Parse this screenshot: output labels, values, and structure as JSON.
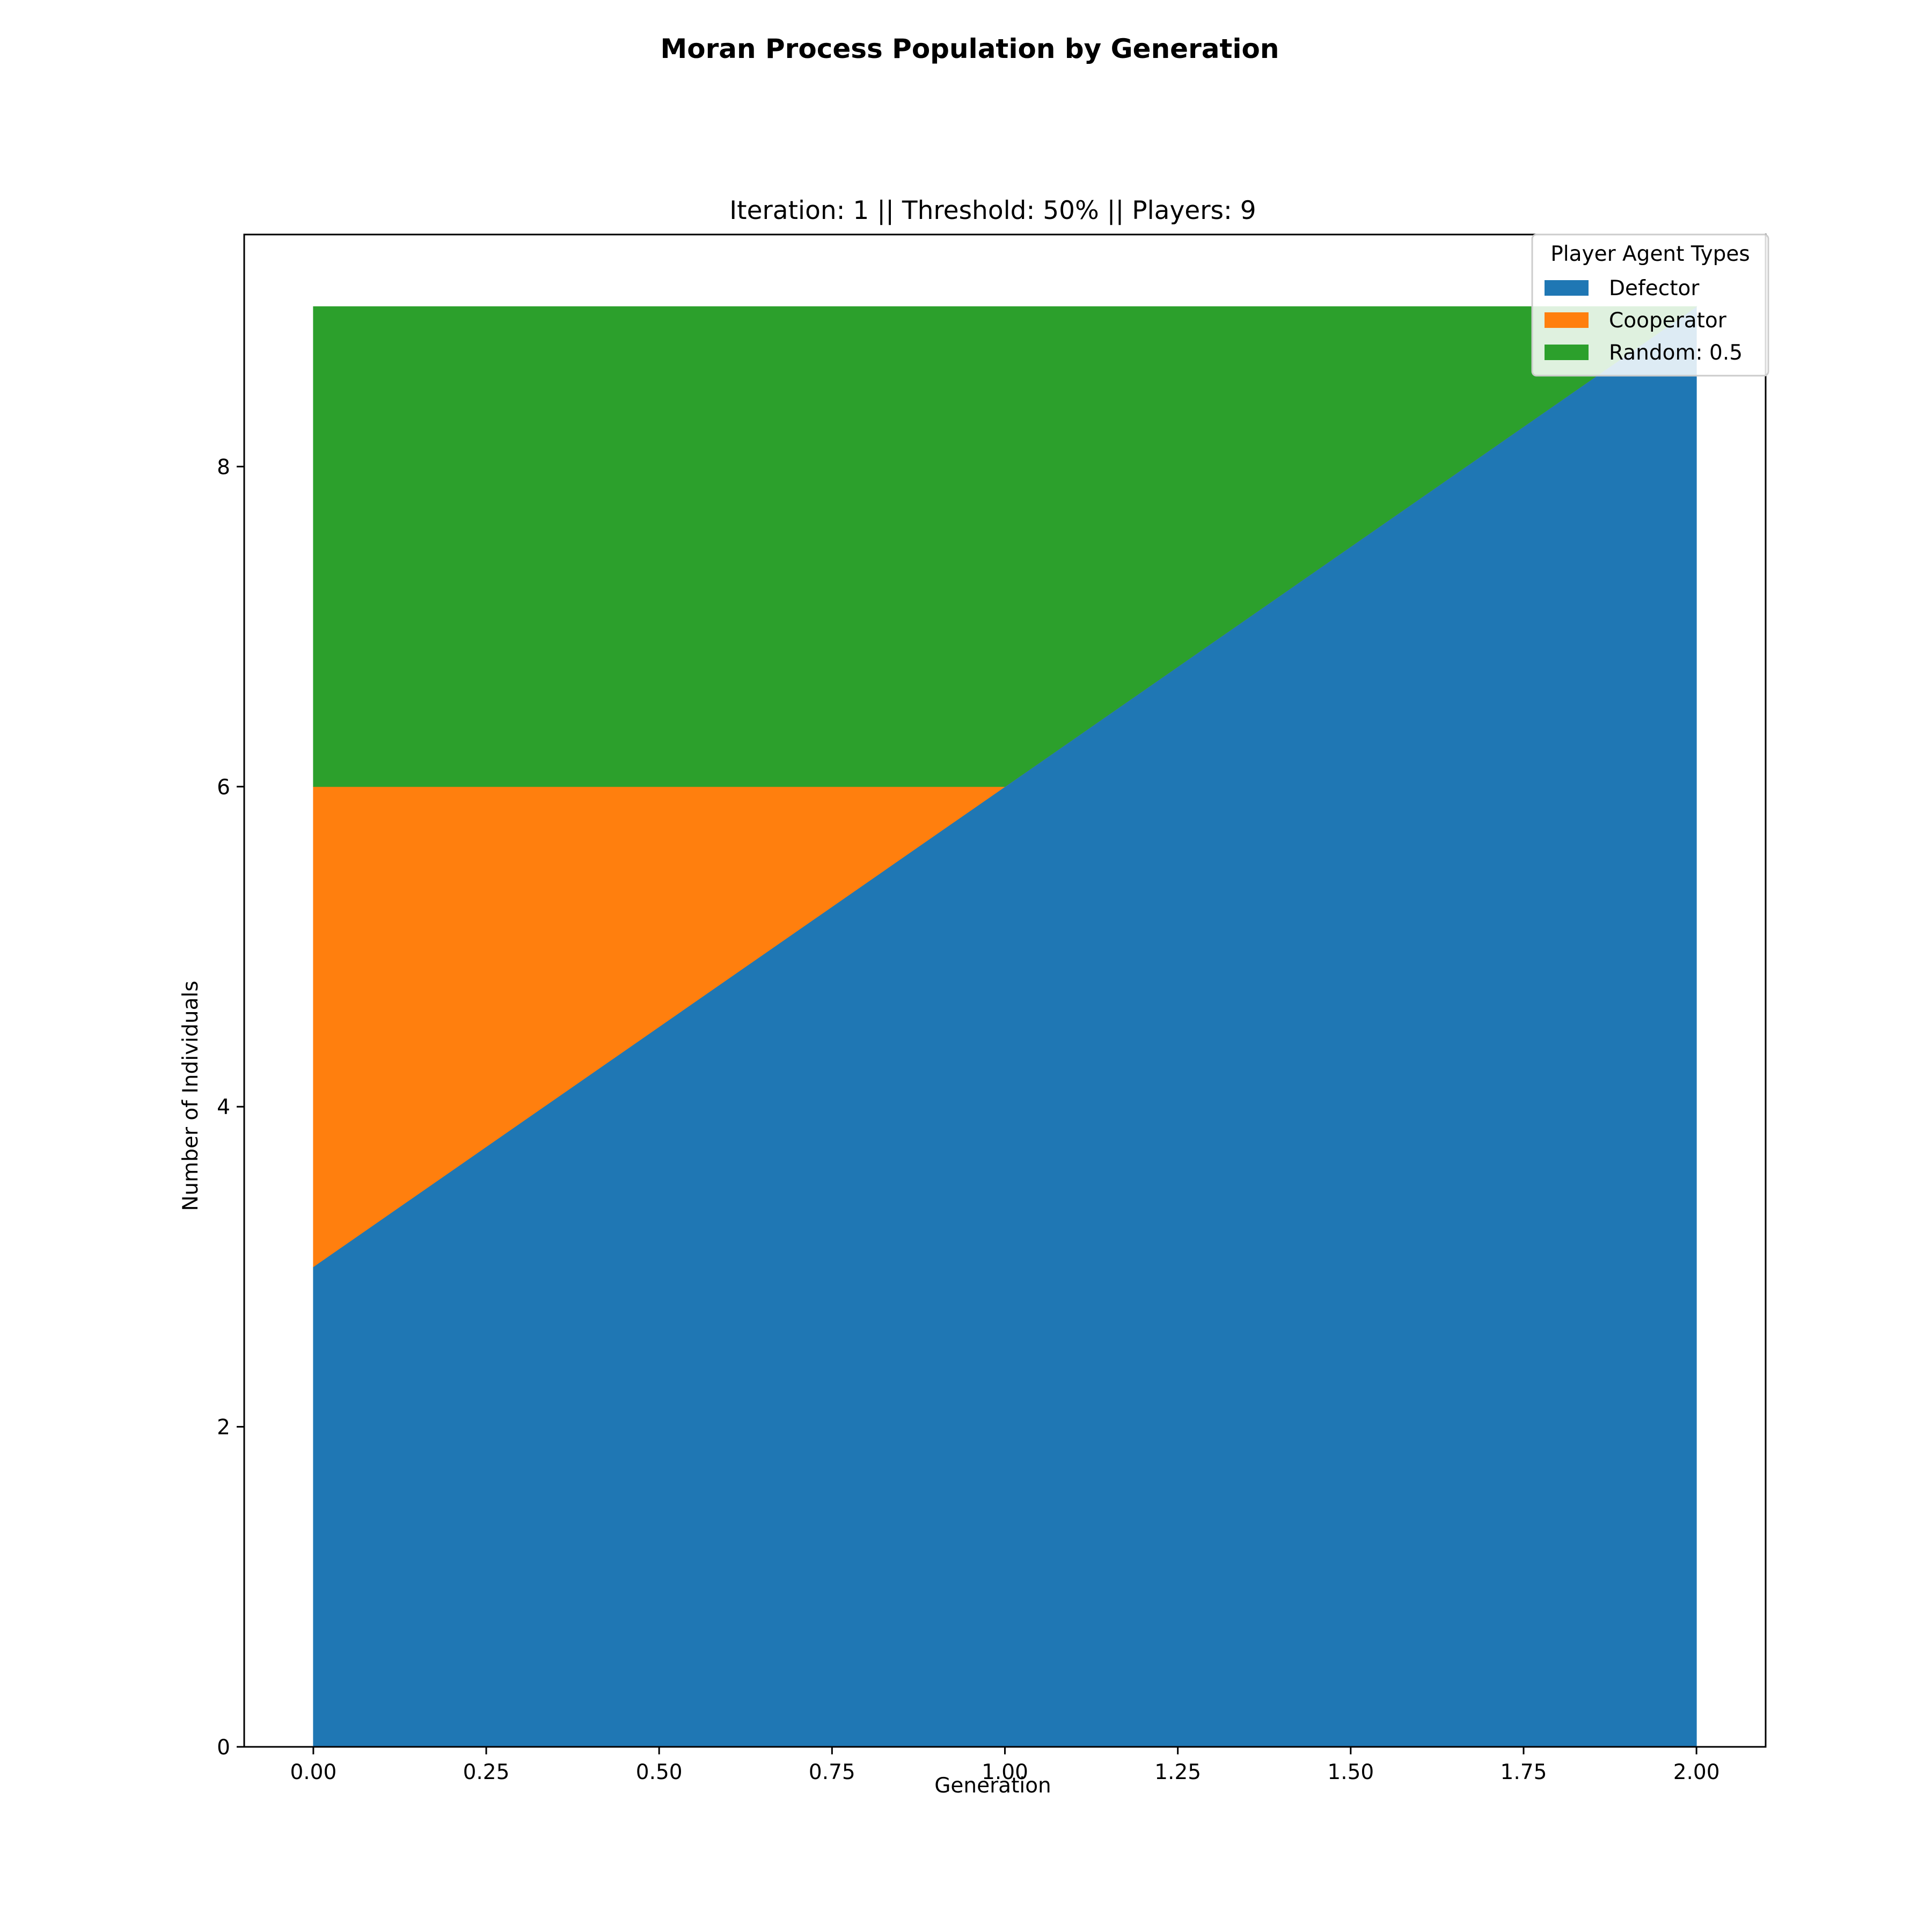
{
  "chart_data": {
    "type": "area",
    "stacked": true,
    "title": "Moran Process Population by Generation",
    "subtitle": "Iteration: 1 || Threshold: 50% || Players: 9",
    "xlabel": "Generation",
    "ylabel": "Number of Individuals",
    "x": [
      0,
      1,
      2
    ],
    "xlim": [
      -0.1,
      2.1
    ],
    "ylim": [
      0,
      9.45
    ],
    "xticks": [
      "0.00",
      "0.25",
      "0.50",
      "0.75",
      "1.00",
      "1.25",
      "1.50",
      "1.75",
      "2.00"
    ],
    "yticks": [
      "0",
      "2",
      "4",
      "6",
      "8"
    ],
    "series": [
      {
        "name": "Defector",
        "values": [
          3,
          6,
          9
        ],
        "color": "#1f77b4"
      },
      {
        "name": "Cooperator",
        "values": [
          3,
          0,
          0
        ],
        "color": "#ff7f0e"
      },
      {
        "name": "Random: 0.5",
        "values": [
          3,
          3,
          0
        ],
        "color": "#2ca02c"
      }
    ],
    "legend": {
      "title": "Player Agent Types",
      "placement": "top-right"
    },
    "grid": false
  }
}
